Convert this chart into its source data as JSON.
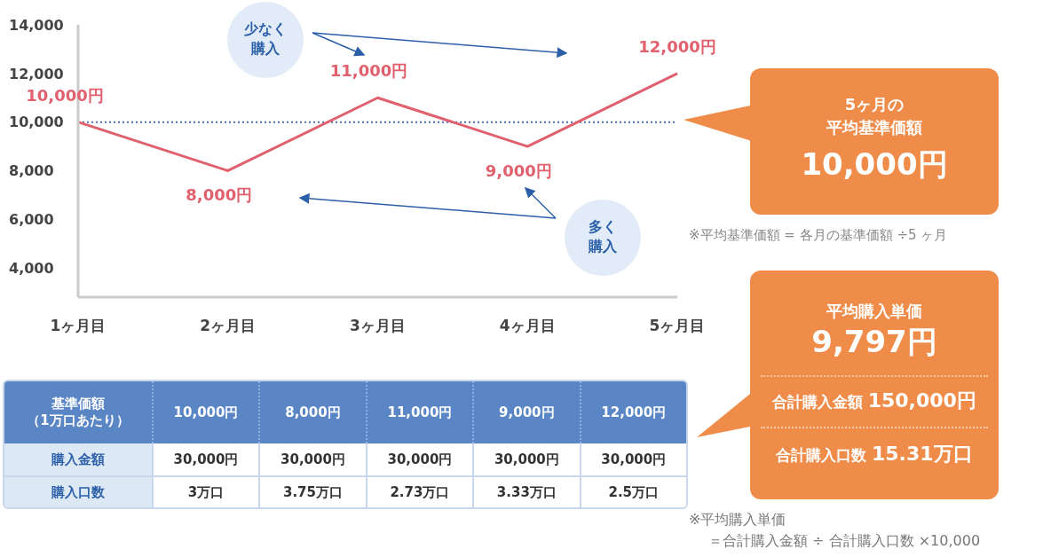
{
  "chart_data": {
    "type": "line",
    "categories": [
      "1ヶ月目",
      "2ヶ月目",
      "3ヶ月目",
      "4ヶ月目",
      "5ヶ月目"
    ],
    "series": [
      {
        "color": "#e0606e",
        "values": [
          10000,
          8000,
          11000,
          9000,
          12000
        ],
        "value_labels": [
          "10,000円",
          "8,000円",
          "11,000円",
          "9,000円",
          "12,000円"
        ]
      }
    ],
    "ylim": [
      2800,
      14000
    ],
    "yticks": [
      {
        "value": 4000,
        "label": "4,000"
      },
      {
        "value": 6000,
        "label": "6,000"
      },
      {
        "value": 8000,
        "label": "8,000"
      },
      {
        "value": 10000,
        "label": "10,000"
      },
      {
        "value": 12000,
        "label": "12,000"
      },
      {
        "value": 14000,
        "label": "14,000"
      }
    ],
    "grid": false,
    "legend": false,
    "marker": "none",
    "line_style": "solid",
    "ref_lines": [
      {
        "axis": "y",
        "value": 10000,
        "color": "#4a6fb5",
        "line_style": "dotted"
      }
    ],
    "annotations": [
      "少なく",
      "購入",
      "多く",
      "購入",
      "5ヶ月の",
      "平均基準価額",
      "10,000円",
      "※平均基準価額 = 各月の基準価額 ÷5 ヶ月",
      "平均購入単価",
      "9,797円",
      "合計購入金額",
      "150,000円",
      "合計購入口数",
      "15.31万口",
      "※平均購入単価",
      "＝合計購入金額 ÷ 合計購入口数 ×10,000",
      "基準価額",
      "（1万口あたり）",
      "購入金額",
      "30,000円",
      "30,000円",
      "30,000円",
      "30,000円",
      "30,000円",
      "購入口数",
      "3万口",
      "3.75万口",
      "2.73万口",
      "3.33万口",
      "2.5万口"
    ]
  }
}
